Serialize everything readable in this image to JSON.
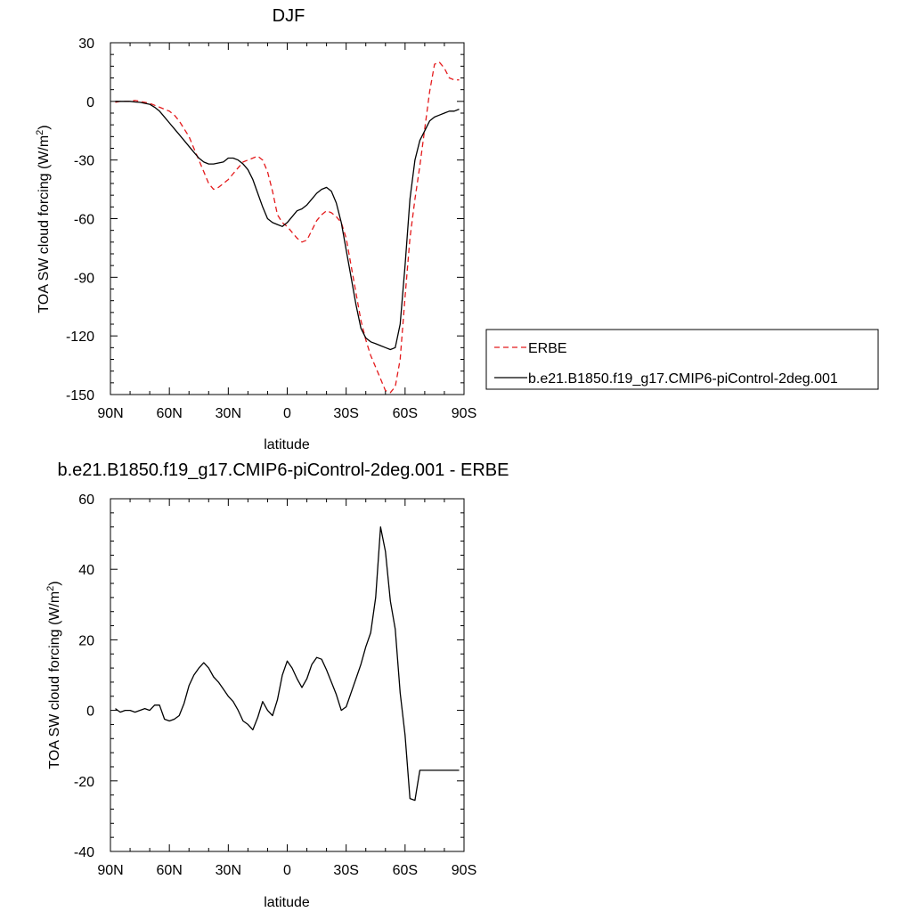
{
  "chart_data": [
    {
      "type": "line",
      "title": "DJF",
      "xlabel": "latitude",
      "ylabel": "TOA SW cloud forcing (W/m²)",
      "ylabel_main": "TOA SW cloud forcing (W/m",
      "ylabel_sup": "2",
      "ylabel_end": ")",
      "xlim": [
        90,
        -90
      ],
      "ylim": [
        -150,
        30
      ],
      "x_ticks": [
        90,
        60,
        30,
        0,
        -30,
        -60,
        -90
      ],
      "x_tick_labels": [
        "90N",
        "60N",
        "30N",
        "0",
        "30S",
        "60S",
        "90S"
      ],
      "y_ticks": [
        30,
        0,
        -30,
        -60,
        -90,
        -120,
        -150
      ],
      "y_tick_labels": [
        "30",
        "0",
        "-30",
        "-60",
        "-90",
        "-120",
        "-150"
      ],
      "legend_position": "right",
      "series": [
        {
          "name": "ERBE",
          "color": "#e41a1c",
          "dash": "dashed",
          "x": [
            87.5,
            85,
            82.5,
            80,
            77.5,
            75,
            72.5,
            70,
            67.5,
            65,
            62.5,
            60,
            57.5,
            55,
            52.5,
            50,
            47.5,
            45,
            42.5,
            40,
            37.5,
            35,
            32.5,
            30,
            27.5,
            25,
            22.5,
            20,
            17.5,
            15,
            12.5,
            10,
            7.5,
            5,
            2.5,
            0,
            -2.5,
            -5,
            -7.5,
            -10,
            -12.5,
            -15,
            -17.5,
            -20,
            -22.5,
            -25,
            -27.5,
            -30,
            -32.5,
            -35,
            -37.5,
            -40,
            -42.5,
            -45,
            -47.5,
            -50,
            -52.5,
            -55,
            -57.5,
            -60,
            -62.5,
            -65,
            -67.5,
            -70,
            -72.5,
            -75,
            -77.5,
            -80,
            -82.5,
            -85,
            -87.5
          ],
          "y": [
            -0.5,
            0,
            0,
            0,
            0.5,
            0,
            -0.5,
            -1,
            -2,
            -3,
            -4,
            -5,
            -7,
            -10,
            -14,
            -18,
            -24,
            -30,
            -36,
            -42,
            -45,
            -44,
            -42,
            -40,
            -37,
            -34,
            -31,
            -30,
            -29,
            -28,
            -30,
            -36,
            -46,
            -58,
            -62,
            -64,
            -67,
            -70,
            -72,
            -71,
            -66,
            -61,
            -58,
            -56,
            -57,
            -59,
            -62,
            -70,
            -84,
            -98,
            -112,
            -122,
            -130,
            -136,
            -142,
            -148,
            -149,
            -146,
            -132,
            -100,
            -70,
            -50,
            -33,
            -14,
            5,
            19,
            20,
            17,
            12,
            11,
            11
          ],
          "y_note": "values continue to chart edge"
        },
        {
          "name": "b.e21.B1850.f19_g17.CMIP6-piControl-2deg.001",
          "color": "#000000",
          "dash": "solid",
          "x": [
            87.5,
            85,
            82.5,
            80,
            77.5,
            75,
            72.5,
            70,
            67.5,
            65,
            62.5,
            60,
            57.5,
            55,
            52.5,
            50,
            47.5,
            45,
            42.5,
            40,
            37.5,
            35,
            32.5,
            30,
            27.5,
            25,
            22.5,
            20,
            17.5,
            15,
            12.5,
            10,
            7.5,
            5,
            2.5,
            0,
            -2.5,
            -5,
            -7.5,
            -10,
            -12.5,
            -15,
            -17.5,
            -20,
            -22.5,
            -25,
            -27.5,
            -30,
            -32.5,
            -35,
            -37.5,
            -40,
            -42.5,
            -45,
            -47.5,
            -50,
            -52.5,
            -55,
            -57.5,
            -60,
            -62.5,
            -65,
            -67.5,
            -70,
            -72.5,
            -75,
            -77.5,
            -80,
            -82.5,
            -85,
            -87.5
          ],
          "y": [
            0,
            0,
            0,
            0,
            -0.3,
            -0.5,
            -1,
            -1.5,
            -3,
            -5,
            -8,
            -11,
            -14,
            -17,
            -20,
            -23,
            -26,
            -29,
            -31,
            -32,
            -32,
            -31.5,
            -31,
            -29,
            -29,
            -30,
            -32,
            -35,
            -40,
            -47,
            -54,
            -60,
            -62,
            -63,
            -64,
            -62,
            -59,
            -56,
            -55,
            -53,
            -50,
            -47,
            -45,
            -44,
            -46,
            -52,
            -62,
            -76,
            -90,
            -104,
            -116,
            -121,
            -123,
            -124,
            -125,
            -126,
            -127,
            -126,
            -114,
            -84,
            -50,
            -30,
            -20,
            -15,
            -10,
            -8,
            -7,
            -6,
            -5,
            -5,
            -4
          ]
        }
      ]
    },
    {
      "type": "line",
      "title": "b.e21.B1850.f19_g17.CMIP6-piControl-2deg.001 - ERBE",
      "xlabel": "latitude",
      "ylabel_main": "TOA SW cloud forcing (W/m",
      "ylabel_sup": "2",
      "ylabel_end": ")",
      "xlim": [
        90,
        -90
      ],
      "ylim": [
        -40,
        60
      ],
      "x_ticks": [
        90,
        60,
        30,
        0,
        -30,
        -60,
        -90
      ],
      "x_tick_labels": [
        "90N",
        "60N",
        "30N",
        "0",
        "30S",
        "60S",
        "90S"
      ],
      "y_ticks": [
        60,
        40,
        20,
        0,
        -20,
        -40
      ],
      "y_tick_labels": [
        "60",
        "40",
        "20",
        "0",
        "-20",
        "-40"
      ],
      "series": [
        {
          "color": "#000000",
          "dash": "solid",
          "x": [
            87.5,
            85,
            82.5,
            80,
            77.5,
            75,
            72.5,
            70,
            67.5,
            65,
            62.5,
            60,
            57.5,
            55,
            52.5,
            50,
            47.5,
            45,
            42.5,
            40,
            37.5,
            35,
            32.5,
            30,
            27.5,
            25,
            22.5,
            20,
            17.5,
            15,
            12.5,
            10,
            7.5,
            5,
            2.5,
            0,
            -2.5,
            -5,
            -7.5,
            -10,
            -12.5,
            -15,
            -17.5,
            -20,
            -22.5,
            -25,
            -27.5,
            -30,
            -32.5,
            -35,
            -37.5,
            -40,
            -42.5,
            -45,
            -47.5,
            -50,
            -52.5,
            -55,
            -57.5,
            -60,
            -62.5,
            -65,
            -67.5,
            -70,
            -72.5,
            -75,
            -77.5,
            -80,
            -82.5,
            -85,
            -87.5
          ],
          "y": [
            0.5,
            -0.5,
            0,
            0,
            -0.5,
            0,
            0.5,
            0,
            1.5,
            1.5,
            -2.5,
            -3,
            -2.5,
            -1.5,
            2,
            7,
            10,
            12,
            13.5,
            12,
            9.5,
            8,
            6,
            4,
            2.5,
            0,
            -3,
            -4,
            -5.5,
            -2,
            2.5,
            0,
            -1.5,
            3,
            10,
            14,
            12,
            9,
            6.5,
            9,
            13,
            15,
            14.5,
            11.5,
            8,
            4.5,
            0,
            1,
            5,
            9,
            13,
            18,
            22,
            32,
            52,
            45,
            31,
            23,
            5,
            -7,
            -25,
            -25.5,
            -17,
            -17,
            -17,
            -17,
            -17,
            -17,
            -17,
            -17,
            -17
          ]
        }
      ]
    }
  ]
}
